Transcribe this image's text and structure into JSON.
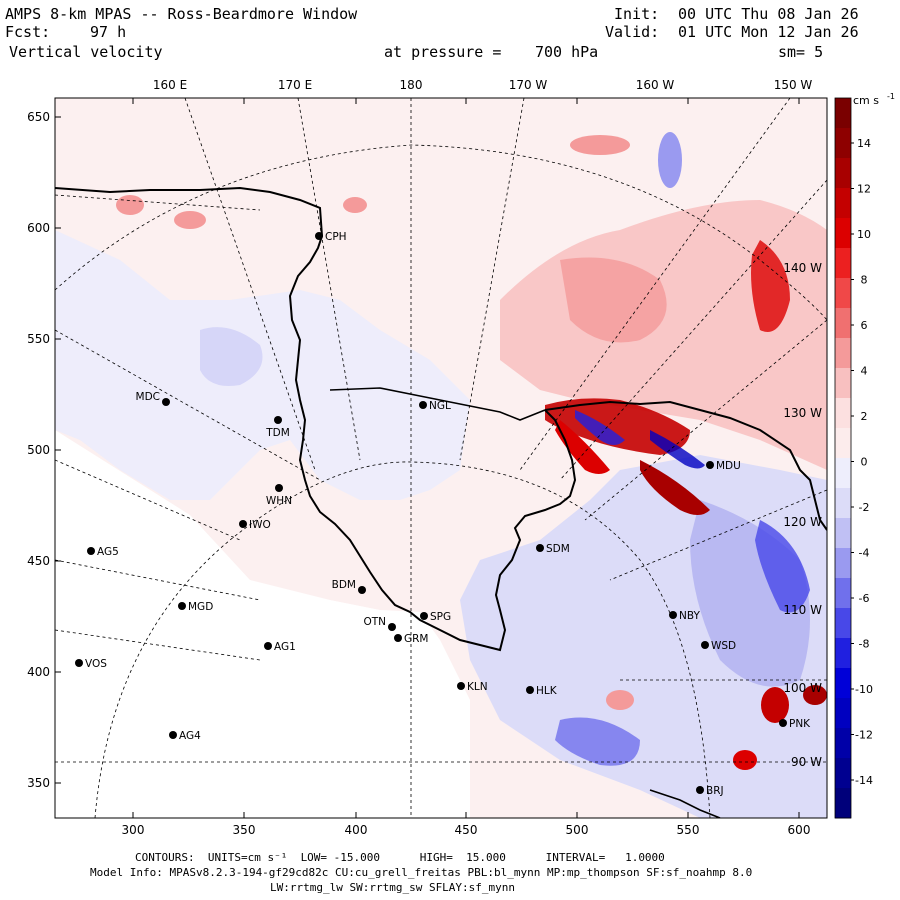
{
  "header": {
    "title": "AMPS 8-km MPAS -- Ross-Beardmore Window",
    "init_label": "Init:",
    "init_value": "00 UTC Thu 08 Jan 26",
    "fcst_label": "Fcst:",
    "fcst_value": "97 h",
    "valid_label": "Valid:",
    "valid_value": "01 UTC Mon 12 Jan 26",
    "field": "Vertical velocity",
    "level_label": "at pressure =",
    "level_value": "700 hPa",
    "smooth": "sm= 5"
  },
  "axes": {
    "x_ticks": [
      "300",
      "350",
      "400",
      "450",
      "500",
      "550",
      "600"
    ],
    "y_ticks": [
      "650",
      "600",
      "550",
      "500",
      "450",
      "400",
      "350"
    ],
    "lon_labels": [
      "160 E",
      "170 E",
      "180",
      "170 W",
      "160 W",
      "150 W"
    ],
    "lon_side_labels": [
      "140 W",
      "130 W",
      "120 W",
      "110 W",
      "100 W",
      "90 W"
    ]
  },
  "stations": [
    {
      "id": "CPH",
      "label": "CPH"
    },
    {
      "id": "NGL",
      "label": "NGL"
    },
    {
      "id": "MDC",
      "label": "MDC"
    },
    {
      "id": "TDM",
      "label": "TDM"
    },
    {
      "id": "WHN",
      "label": "WHN"
    },
    {
      "id": "IWO",
      "label": "IWO"
    },
    {
      "id": "AG5",
      "label": "AG5"
    },
    {
      "id": "MGD",
      "label": "MGD"
    },
    {
      "id": "BDM",
      "label": "BDM"
    },
    {
      "id": "OTN",
      "label": "OTN"
    },
    {
      "id": "SPG",
      "label": "SPG"
    },
    {
      "id": "GRM",
      "label": "GRM"
    },
    {
      "id": "AG1",
      "label": "AG1"
    },
    {
      "id": "VOS",
      "label": "VOS"
    },
    {
      "id": "AG4",
      "label": "AG4"
    },
    {
      "id": "KLN",
      "label": "KLN"
    },
    {
      "id": "HLK",
      "label": "HLK"
    },
    {
      "id": "SDM",
      "label": "SDM"
    },
    {
      "id": "NBY",
      "label": "NBY"
    },
    {
      "id": "WSD",
      "label": "WSD"
    },
    {
      "id": "MDU",
      "label": "MDU"
    },
    {
      "id": "PNK",
      "label": "PNK"
    },
    {
      "id": "BRJ",
      "label": "BRJ"
    }
  ],
  "colorbar": {
    "units": "cm s",
    "units_exp": "-1",
    "labels": [
      "14",
      "12",
      "10",
      "8",
      "6",
      "4",
      "2",
      "0",
      "-2",
      "-4",
      "-6",
      "-8",
      "-10",
      "-12",
      "-14"
    ],
    "colors": [
      "#7a0000",
      "#8e0000",
      "#a80000",
      "#c40000",
      "#dc0000",
      "#ec2020",
      "#f04848",
      "#f07070",
      "#f49a9a",
      "#f8c0c0",
      "#fce0e0",
      "#fcecec",
      "#eeeefc",
      "#dcdcf8",
      "#c0c0f4",
      "#9a9af0",
      "#7070ec",
      "#4848e8",
      "#2020e0",
      "#0000d8",
      "#0000c0",
      "#0000a8",
      "#000090",
      "#00007a"
    ]
  },
  "footer": {
    "line1": "CONTOURS:  UNITS=cm s⁻¹  LOW= -15.000      HIGH=  15.000      INTERVAL=   1.0000",
    "line2": "Model Info: MPASv8.2.3-194-gf29cd82c CU:cu_grell_freitas PBL:bl_mynn MP:mp_thompson SF:sf_noahmp 8.0",
    "line3": "LW:rrtmg_lw SW:rrtmg_sw SFLAY:sf_mynn"
  },
  "colors": {
    "upward": "#dc0000",
    "downward": "#0000d8",
    "neutral": "#fcecec"
  }
}
